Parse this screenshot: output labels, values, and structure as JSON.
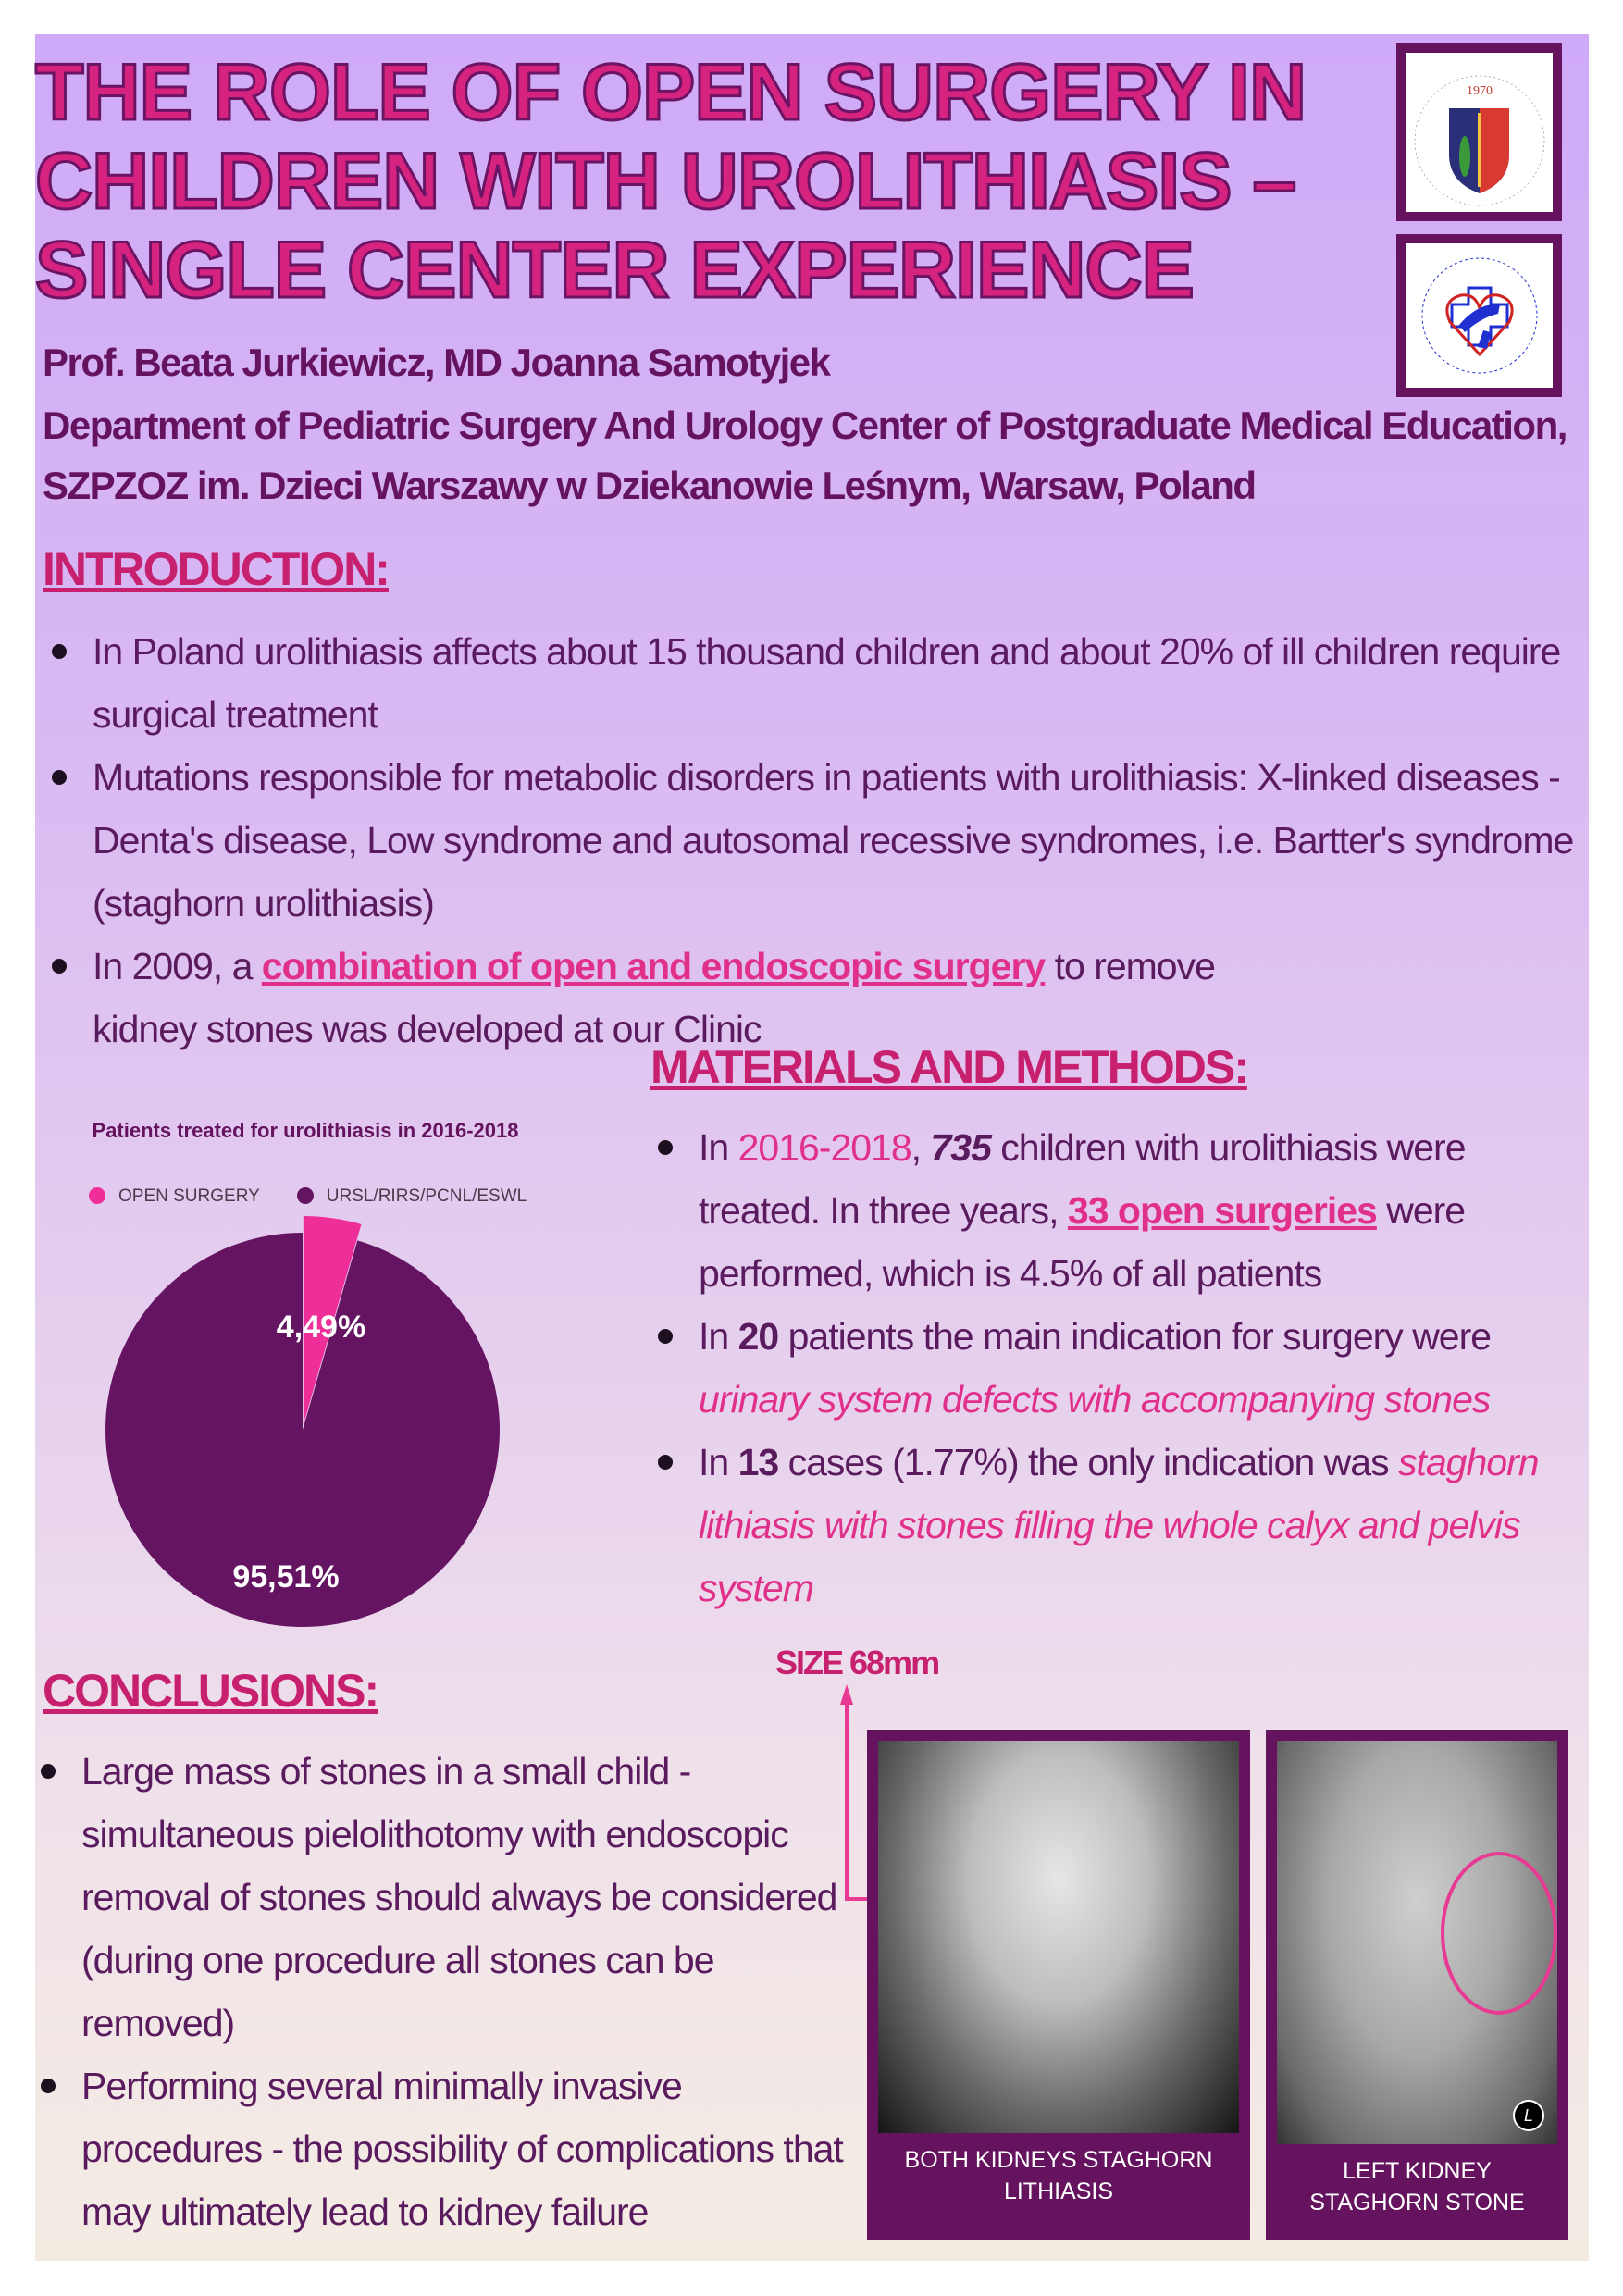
{
  "title": [
    "THE ROLE OF OPEN SURGERY IN",
    "CHILDREN WITH UROLITHIASIS –",
    "SINGLE CENTER EXPERIENCE"
  ],
  "logos": {
    "cmkp": {
      "text": "CENTRUM MEDYCZNE KSZTAŁCENIA PODYPLOMOWEGO",
      "year": "1970"
    },
    "szpzoz": {
      "text": "SZPZOZ im. DZIECI WARSZAWY w Dziekanowie Leśnym"
    }
  },
  "authors": "Prof. Beata Jurkiewicz, MD Joanna Samotyjek",
  "affiliation": [
    "Department of Pediatric Surgery And Urology Center of Postgraduate Medical Education,",
    "SZPZOZ im. Dzieci Warszawy w Dziekanowie Leśnym, Warsaw, Poland"
  ],
  "introduction": {
    "heading": "INTRODUCTION:",
    "b1": "In Poland urolithiasis affects about 15 thousand children and about 20% of ill children require surgical treatment",
    "b2": "Mutations responsible for metabolic disorders in patients with urolithiasis: X-linked diseases - Denta's disease, Low syndrome and autosomal recessive syndromes, i.e. Bartter's syndrome (staghorn urolithiasis)",
    "b3_pre": "In 2009, a ",
    "b3_hl": "combination of open and endoscopic surgery",
    "b3_post": " to remove kidney stones was developed at our Clinic"
  },
  "methods": {
    "heading": "MATERIALS AND METHODS:",
    "b1": {
      "a": "In ",
      "years": "2016-2018",
      ",": ", ",
      "n": "735",
      "b": " children with urolithiasis were treated. In three years, ",
      "hl": "33 open surgeries",
      "c": " were performed, which is 4.5% of all patients"
    },
    "b2": {
      "a": "In ",
      "n": "20",
      "b": " patients the main indication for surgery were ",
      "it": "urinary system defects with accompanying stones"
    },
    "b3": {
      "a": "In ",
      "n": "13",
      "b": " cases (1.77%) the only indication was ",
      "it": "staghorn lithiasis  with stones filling the whole calyx and pelvis system"
    }
  },
  "conclusions": {
    "heading": "CONCLUSIONS:",
    "b1": "Large mass of stones in a small child - simultaneous pielolithotomy with endoscopic removal of stones should always be considered (during one procedure all stones can be removed)",
    "b2": "Performing several minimally invasive procedures - the possibility of complications that may ultimately lead to kidney failure"
  },
  "size_label": "SIZE 68mm",
  "photos": [
    {
      "caption": "BOTH KIDNEYS STAGHORN LITHIASIS"
    },
    {
      "caption": "LEFT KIDNEY STAGHORN STONE",
      "marker": "L"
    }
  ],
  "chart_data": {
    "type": "pie",
    "title": "Patients treated for urolithiasis in 2016-2018",
    "legend_placement": "top",
    "slices": [
      {
        "name": "OPEN SURGERY",
        "value": 4.49,
        "label": "4,49%",
        "color": "#ee2f9a"
      },
      {
        "name": "URSL/RIRS/PCNL/ESWL",
        "value": 95.51,
        "label": "95,51%",
        "color": "#651462"
      }
    ]
  },
  "colors": {
    "accent": "#d6237f",
    "dark": "#65135f",
    "pink": "#e0308a"
  }
}
